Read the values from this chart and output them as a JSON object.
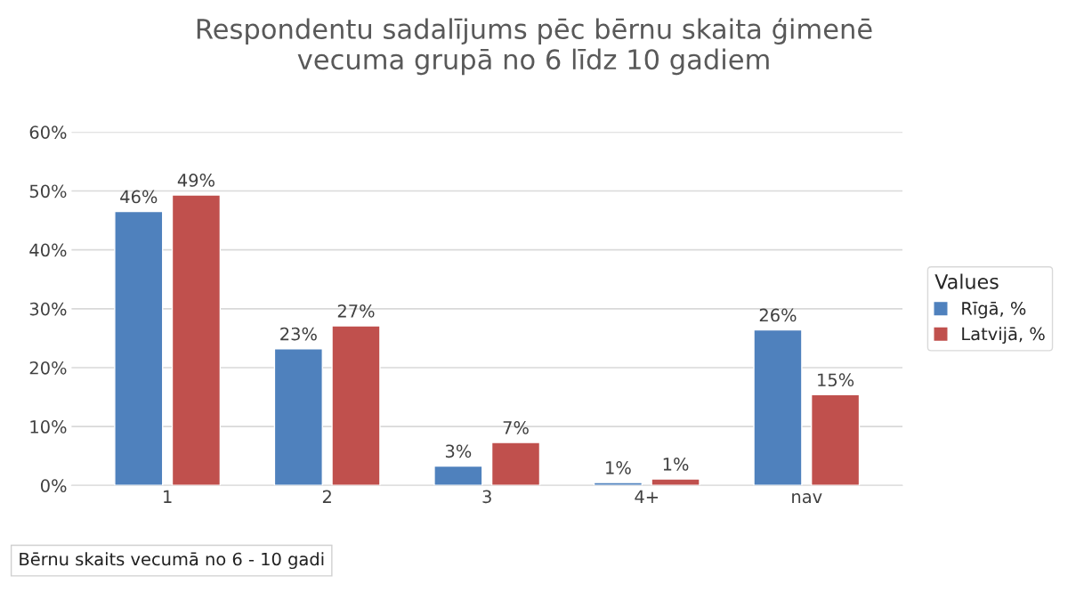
{
  "chart_data": {
    "type": "bar",
    "title": "Respondentu sadalījums pēc bērnu skaita ģimenē\nvecuma grupā no 6 līdz 10 gadiem",
    "categories": [
      "1",
      "2",
      "3",
      "4+",
      "nav"
    ],
    "series": [
      {
        "name": "Rīgā, %",
        "color": "#4f81bd",
        "values": [
          46.5,
          23.2,
          3.3,
          0.5,
          26.4
        ],
        "value_labels": [
          "46%",
          "23%",
          "3%",
          "1%",
          "26%"
        ]
      },
      {
        "name": "Latvijā, %",
        "color": "#c0504d",
        "values": [
          49.3,
          27.1,
          7.3,
          1.1,
          15.4
        ],
        "value_labels": [
          "49%",
          "27%",
          "7%",
          "1%",
          "15%"
        ]
      }
    ],
    "xlabel": "Bērnu skaits vecumā no 6 - 10 gadi",
    "legend_title": "Values",
    "legend": "right",
    "grid": "y",
    "ylim": [
      0,
      60
    ],
    "yticks": [
      {
        "value": 0,
        "label": "0%"
      },
      {
        "value": 10,
        "label": "10%"
      },
      {
        "value": 20,
        "label": "20%"
      },
      {
        "value": 30,
        "label": "30%"
      },
      {
        "value": 40,
        "label": "40%"
      },
      {
        "value": 50,
        "label": "50%"
      },
      {
        "value": 60,
        "label": "60%"
      }
    ]
  }
}
